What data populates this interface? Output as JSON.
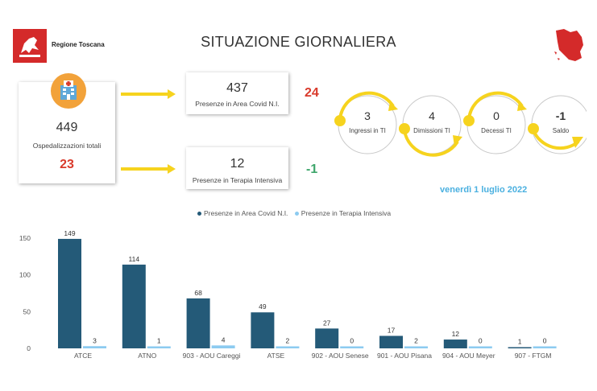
{
  "header": {
    "logo_text": "Regione Toscana",
    "title": "SITUAZIONE GIORNALIERA"
  },
  "hosp_card": {
    "icon": "hospital-icon",
    "value": "449",
    "label": "Ospedalizzazioni totali",
    "delta": "23"
  },
  "covid_card": {
    "value": "437",
    "label": "Presenze in Area Covid N.I.",
    "delta": "24"
  },
  "ti_card": {
    "value": "12",
    "label": "Presenze in Terapia Intensiva",
    "delta": "-1"
  },
  "flow": [
    {
      "value": "3",
      "label": "Ingressi in TI"
    },
    {
      "value": "4",
      "label": "Dimissioni TI"
    },
    {
      "value": "0",
      "label": "Decessi TI"
    },
    {
      "value": "-1",
      "label": "Saldo"
    }
  ],
  "date": "venerdì 1 luglio 2022",
  "colors": {
    "covid": "#245a78",
    "ti": "#8ccbf0",
    "arrow": "#f6d31e",
    "red": "#d93a2b",
    "green": "#3ea66b",
    "brand_red": "#d42a2a"
  },
  "chart_data": {
    "type": "bar",
    "categories": [
      "ATCE",
      "ATNO",
      "903 - AOU Careggi",
      "ATSE",
      "902 - AOU Senese",
      "901 - AOU Pisana",
      "904 - AOU Meyer",
      "907 - FTGM"
    ],
    "series": [
      {
        "name": "Presenze in Area Covid N.I.",
        "values": [
          149,
          114,
          68,
          49,
          27,
          17,
          12,
          1
        ]
      },
      {
        "name": "Presenze in Terapia Intensiva",
        "values": [
          3,
          1,
          4,
          2,
          0,
          2,
          0,
          0
        ]
      }
    ],
    "ylim": [
      0,
      160
    ],
    "yticks": [
      0,
      50,
      100,
      150
    ],
    "legend_position": "top",
    "grid": false
  }
}
